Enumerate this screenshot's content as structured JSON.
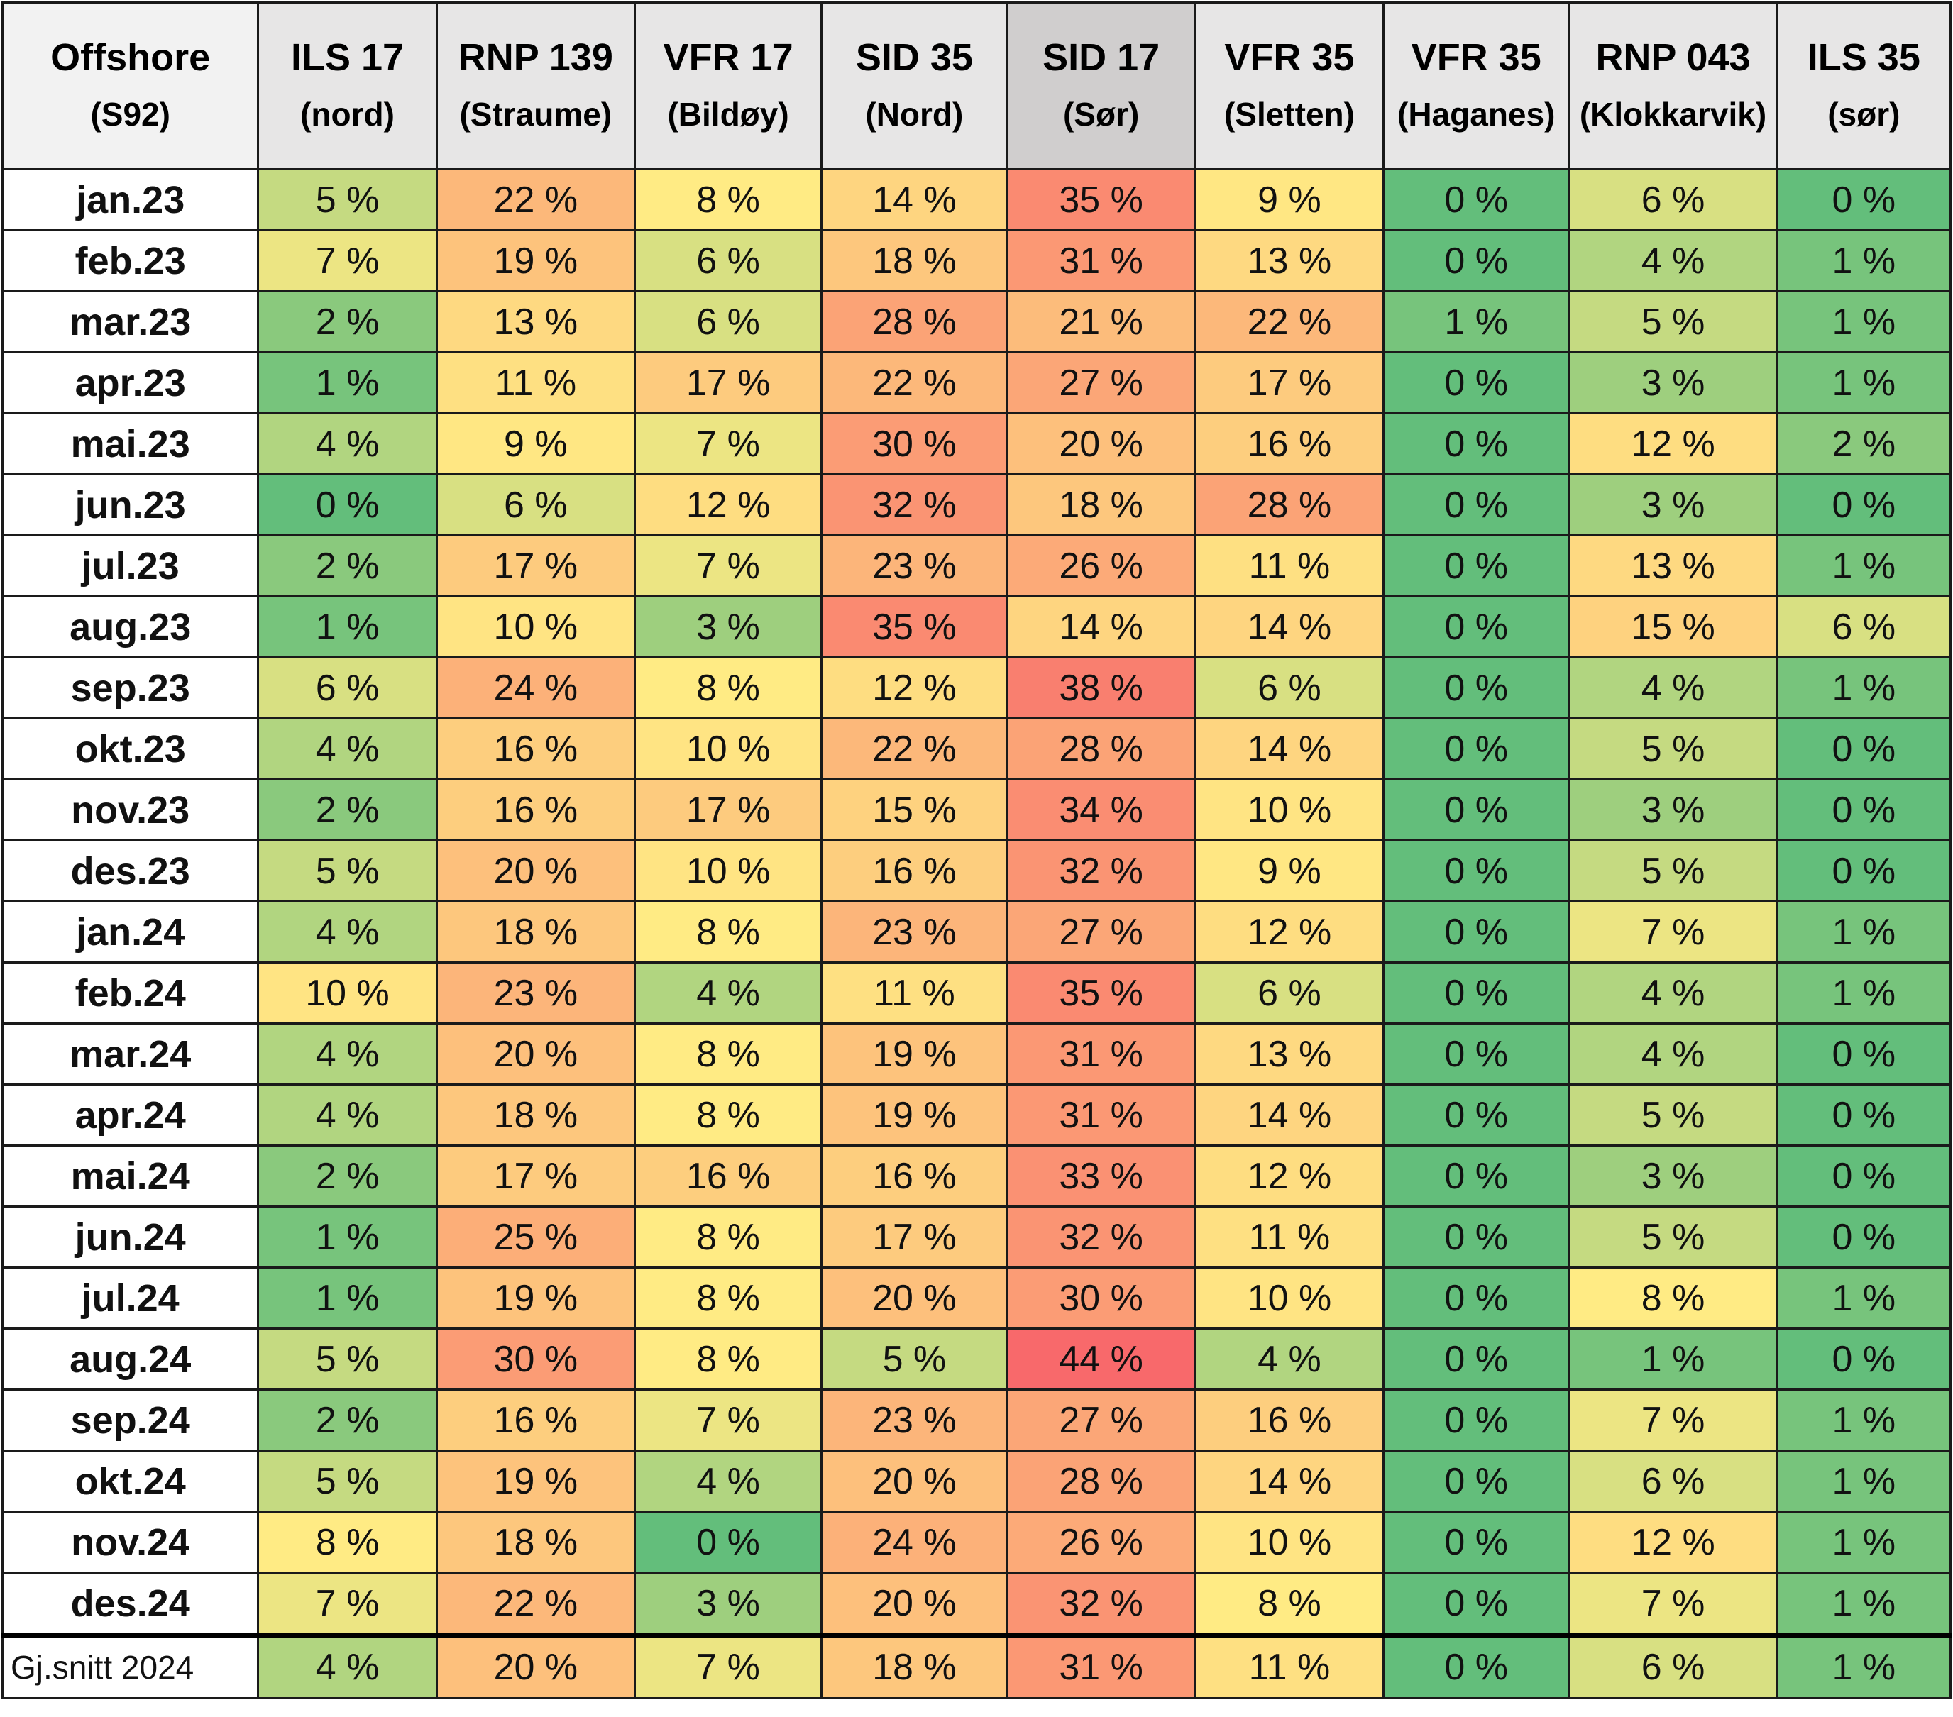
{
  "header": {
    "label": {
      "line1": "Offshore",
      "line2": "(S92)"
    },
    "columns": [
      {
        "line1": "ILS 17",
        "line2": "(nord)"
      },
      {
        "line1": "RNP 139",
        "line2": "(Straume)"
      },
      {
        "line1": "VFR 17",
        "line2": "(Bildøy)"
      },
      {
        "line1": "SID 35",
        "line2": "(Nord)"
      },
      {
        "line1": "SID 17",
        "line2": "(Sør)"
      },
      {
        "line1": "VFR 35",
        "line2": "(Sletten)"
      },
      {
        "line1": "VFR 35",
        "line2": "(Haganes)"
      },
      {
        "line1": "RNP 043",
        "line2": "(Klokkarvik)"
      },
      {
        "line1": "ILS 35",
        "line2": "(sør)"
      }
    ]
  },
  "color_scale": {
    "min": "#63be7b",
    "mid": "#ffeb84",
    "max": "#f8696b"
  },
  "rows": [
    {
      "label": "jan.23",
      "values": [
        "5 %",
        "22 %",
        "8 %",
        "14 %",
        "35 %",
        "9 %",
        "0 %",
        "6 %",
        "0 %"
      ]
    },
    {
      "label": "feb.23",
      "values": [
        "7 %",
        "19 %",
        "6 %",
        "18 %",
        "31 %",
        "13 %",
        "0 %",
        "4 %",
        "1 %"
      ]
    },
    {
      "label": "mar.23",
      "values": [
        "2 %",
        "13 %",
        "6 %",
        "28 %",
        "21 %",
        "22 %",
        "1 %",
        "5 %",
        "1 %"
      ]
    },
    {
      "label": "apr.23",
      "values": [
        "1 %",
        "11 %",
        "17 %",
        "22 %",
        "27 %",
        "17 %",
        "0 %",
        "3 %",
        "1 %"
      ]
    },
    {
      "label": "mai.23",
      "values": [
        "4 %",
        "9 %",
        "7 %",
        "30 %",
        "20 %",
        "16 %",
        "0 %",
        "12 %",
        "2 %"
      ]
    },
    {
      "label": "jun.23",
      "values": [
        "0 %",
        "6 %",
        "12 %",
        "32 %",
        "18 %",
        "28 %",
        "0 %",
        "3 %",
        "0 %"
      ]
    },
    {
      "label": "jul.23",
      "values": [
        "2 %",
        "17 %",
        "7 %",
        "23 %",
        "26 %",
        "11 %",
        "0 %",
        "13 %",
        "1 %"
      ]
    },
    {
      "label": "aug.23",
      "values": [
        "1 %",
        "10 %",
        "3 %",
        "35 %",
        "14 %",
        "14 %",
        "0 %",
        "15 %",
        "6 %"
      ]
    },
    {
      "label": "sep.23",
      "values": [
        "6 %",
        "24 %",
        "8 %",
        "12 %",
        "38 %",
        "6 %",
        "0 %",
        "4 %",
        "1 %"
      ]
    },
    {
      "label": "okt.23",
      "values": [
        "4 %",
        "16 %",
        "10 %",
        "22 %",
        "28 %",
        "14 %",
        "0 %",
        "5 %",
        "0 %"
      ]
    },
    {
      "label": "nov.23",
      "values": [
        "2 %",
        "16 %",
        "17 %",
        "15 %",
        "34 %",
        "10 %",
        "0 %",
        "3 %",
        "0 %"
      ]
    },
    {
      "label": "des.23",
      "values": [
        "5 %",
        "20 %",
        "10 %",
        "16 %",
        "32 %",
        "9 %",
        "0 %",
        "5 %",
        "0 %"
      ]
    },
    {
      "label": "jan.24",
      "values": [
        "4 %",
        "18 %",
        "8 %",
        "23 %",
        "27 %",
        "12 %",
        "0 %",
        "7 %",
        "1 %"
      ]
    },
    {
      "label": "feb.24",
      "values": [
        "10 %",
        "23 %",
        "4 %",
        "11 %",
        "35 %",
        "6 %",
        "0 %",
        "4 %",
        "1 %"
      ]
    },
    {
      "label": "mar.24",
      "values": [
        "4 %",
        "20 %",
        "8 %",
        "19 %",
        "31 %",
        "13 %",
        "0 %",
        "4 %",
        "0 %"
      ]
    },
    {
      "label": "apr.24",
      "values": [
        "4 %",
        "18 %",
        "8 %",
        "19 %",
        "31 %",
        "14 %",
        "0 %",
        "5 %",
        "0 %"
      ]
    },
    {
      "label": "mai.24",
      "values": [
        "2 %",
        "17 %",
        "16 %",
        "16 %",
        "33 %",
        "12 %",
        "0 %",
        "3 %",
        "0 %"
      ]
    },
    {
      "label": "jun.24",
      "values": [
        "1 %",
        "25 %",
        "8 %",
        "17 %",
        "32 %",
        "11 %",
        "0 %",
        "5 %",
        "0 %"
      ]
    },
    {
      "label": "jul.24",
      "values": [
        "1 %",
        "19 %",
        "8 %",
        "20 %",
        "30 %",
        "10 %",
        "0 %",
        "8 %",
        "1 %"
      ]
    },
    {
      "label": "aug.24",
      "values": [
        "5 %",
        "30 %",
        "8 %",
        "5 %",
        "44 %",
        "4 %",
        "0 %",
        "1 %",
        "0 %"
      ]
    },
    {
      "label": "sep.24",
      "values": [
        "2 %",
        "16 %",
        "7 %",
        "23 %",
        "27 %",
        "16 %",
        "0 %",
        "7 %",
        "1 %"
      ]
    },
    {
      "label": "okt.24",
      "values": [
        "5 %",
        "19 %",
        "4 %",
        "20 %",
        "28 %",
        "14 %",
        "0 %",
        "6 %",
        "1 %"
      ]
    },
    {
      "label": "nov.24",
      "values": [
        "8 %",
        "18 %",
        "0 %",
        "24 %",
        "26 %",
        "10 %",
        "0 %",
        "12 %",
        "1 %"
      ]
    },
    {
      "label": "des.24",
      "values": [
        "7 %",
        "22 %",
        "3 %",
        "20 %",
        "32 %",
        "8 %",
        "0 %",
        "7 %",
        "1 %"
      ]
    }
  ],
  "footer": {
    "label": "Gj.snitt 2024",
    "values": [
      "4 %",
      "20 %",
      "7 %",
      "18 %",
      "31 %",
      "11 %",
      "0 %",
      "6 %",
      "1 %"
    ]
  }
}
